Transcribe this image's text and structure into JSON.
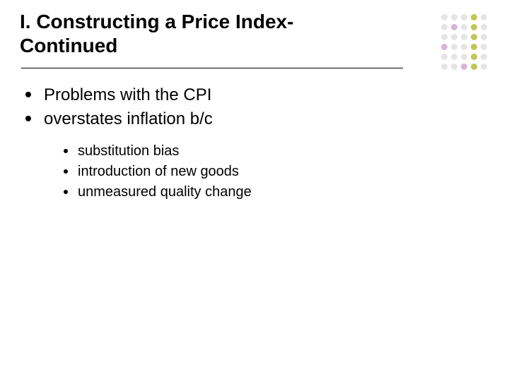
{
  "slide": {
    "title": "I. Constructing a Price Index- Continued",
    "title_fontsize": 28,
    "title_color": "#000000",
    "rule_color": "#000000",
    "background_color": "#ffffff",
    "body": {
      "level1_fontsize": 24,
      "level2_fontsize": 20,
      "bullet_color": "#000000",
      "text_color": "#000000",
      "items": [
        {
          "text": "Problems with the CPI"
        },
        {
          "text": "overstates inflation b/c"
        }
      ],
      "subitems": [
        {
          "text": "substitution bias"
        },
        {
          "text": "introduction of new goods"
        },
        {
          "text": "unmeasured quality change"
        }
      ]
    },
    "decorative_dots": {
      "cols": 5,
      "rows": 6,
      "cell_size": 9,
      "gap": 4,
      "colors": [
        [
          "#e5e5e5",
          "#e5e5e5",
          "#e5e5e5",
          "#c0c757",
          "#e5e5e5"
        ],
        [
          "#e5e5e5",
          "#d9b3d9",
          "#e5e5e5",
          "#c0c757",
          "#e5e5e5"
        ],
        [
          "#e5e5e5",
          "#e5e5e5",
          "#e5e5e5",
          "#c0c757",
          "#e5e5e5"
        ],
        [
          "#d9b3d9",
          "#e5e5e5",
          "#e5e5e5",
          "#c0c757",
          "#e5e5e5"
        ],
        [
          "#e5e5e5",
          "#e5e5e5",
          "#e5e5e5",
          "#c0c757",
          "#e5e5e5"
        ],
        [
          "#e5e5e5",
          "#e5e5e5",
          "#d9b3d9",
          "#c0c757",
          "#e5e5e5"
        ]
      ]
    }
  }
}
